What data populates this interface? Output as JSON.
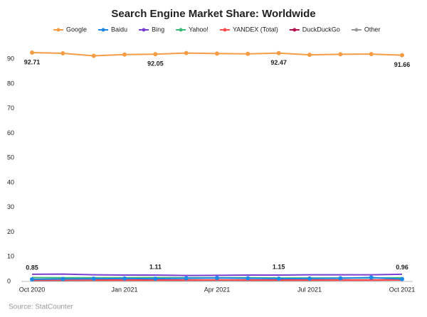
{
  "chart_data": {
    "type": "line",
    "title": "Search Engine Market Share: Worldwide",
    "source": "Source: StatCounter",
    "categories": [
      "Oct 2020",
      null,
      null,
      "Jan 2021",
      null,
      null,
      "Apr 2021",
      null,
      null,
      "Jul 2021",
      null,
      null,
      "Oct 2021"
    ],
    "ylim": [
      0,
      95
    ],
    "yticks": [
      0,
      10,
      20,
      30,
      40,
      50,
      60,
      70,
      80,
      90
    ],
    "series": [
      {
        "name": "Google",
        "color": "#f39c45",
        "markers": true,
        "values": [
          92.71,
          92.4,
          91.4,
          91.9,
          92.05,
          92.5,
          92.3,
          92.2,
          92.47,
          91.8,
          92.0,
          92.1,
          91.66
        ],
        "value_labels": [
          "92.71",
          null,
          null,
          null,
          "92.05",
          null,
          null,
          null,
          "92.47",
          null,
          null,
          null,
          "91.66"
        ]
      },
      {
        "name": "Baidu",
        "color": "#1e88e5",
        "markers": true,
        "values": [
          0.85,
          1.0,
          1.1,
          1.2,
          1.11,
          1.3,
          1.4,
          1.3,
          1.15,
          1.2,
          1.3,
          1.6,
          0.96
        ],
        "value_labels": [
          "0.85",
          null,
          null,
          null,
          "1.11",
          null,
          null,
          null,
          "1.15",
          null,
          null,
          null,
          "0.96"
        ]
      },
      {
        "name": "Bing",
        "color": "#7b3fd0",
        "values": [
          2.9,
          3.0,
          2.7,
          2.6,
          2.6,
          2.4,
          2.5,
          2.6,
          2.6,
          2.7,
          2.7,
          2.7,
          2.9
        ]
      },
      {
        "name": "Yahoo!",
        "color": "#3cb878",
        "values": [
          1.6,
          1.5,
          1.5,
          1.5,
          1.6,
          1.5,
          1.5,
          1.5,
          1.4,
          1.4,
          1.4,
          1.4,
          1.5
        ]
      },
      {
        "name": "YANDEX (Total)",
        "color": "#ff4d4d",
        "values": [
          0.6,
          0.6,
          0.5,
          0.5,
          0.5,
          0.5,
          0.6,
          0.5,
          0.5,
          0.5,
          0.5,
          0.5,
          0.6
        ]
      },
      {
        "name": "DuckDuckGo",
        "color": "#b0134d",
        "values": [
          0.5,
          0.5,
          0.6,
          0.6,
          0.6,
          0.6,
          0.6,
          0.6,
          0.6,
          0.6,
          0.6,
          0.6,
          0.7
        ]
      },
      {
        "name": "Other",
        "color": "#999999",
        "values": [
          0.4,
          0.4,
          0.4,
          0.4,
          0.4,
          0.4,
          0.4,
          0.4,
          0.4,
          0.4,
          0.5,
          0.5,
          0.5
        ]
      }
    ]
  }
}
